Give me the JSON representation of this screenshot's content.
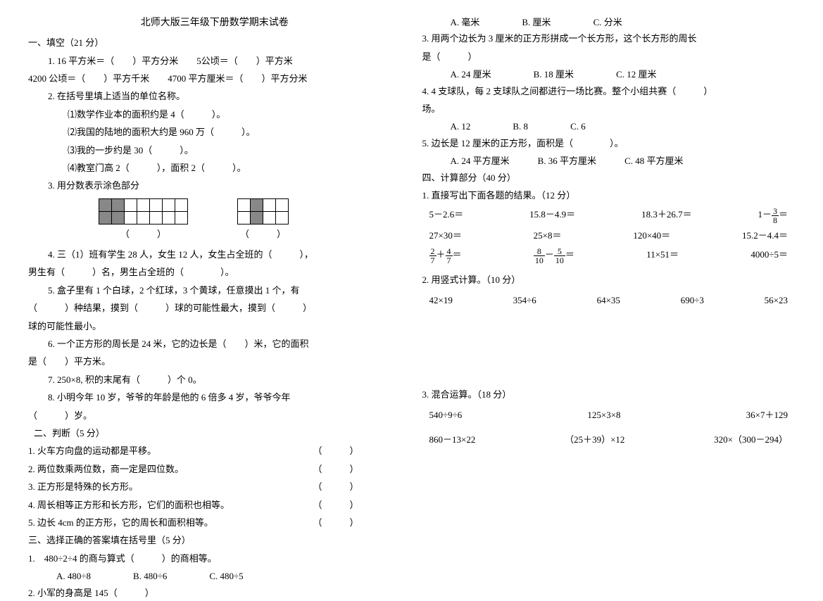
{
  "title": "北师大版三年级下册数学期末试卷",
  "sec1": {
    "heading": "一、填空（21 分）",
    "q1": "1. 16 平方米＝（　　）平方分米　　5公顷＝（　　）平方米",
    "q1b": "4200 公顷＝（　　）平方千米　　4700 平方厘米＝（　　）平方分米",
    "q2": "2. 在括号里填上适当的单位名称。",
    "q2a": "⑴数学作业本的面积约是 4（　　　）。",
    "q2b": "⑵我国的陆地的面积大约是 960 万（　　　）。",
    "q2c": "⑶我的一步约是 30（　　　）。",
    "q2d": "⑷教室门高 2（　　　），面积 2（　　　）。",
    "q3": "3. 用分数表示涂色部分",
    "paren": "（　　　）",
    "q4a": "4. 三（1）班有学生 28 人，女生 12 人，女生占全班的（　　　），",
    "q4b": "男生有（　　　）名，男生占全班的（　　　　）。",
    "q5a": "5. 盒子里有 1 个白球，2 个红球，3 个黄球，任意摸出 1 个，有",
    "q5b": "（　　　）种结果，摸到（　　　）球的可能性最大，摸到（　　　）",
    "q5c": "球的可能性最小。",
    "q6a": "6. 一个正方形的周长是 24 米，它的边长是（　　）米，它的面积",
    "q6b": "是（　　）平方米。",
    "q7": "7. 250×8, 积的末尾有（　　　）个 0。",
    "q8a": "8. 小明今年 10 岁，爷爷的年龄是他的 6 倍多 4 岁，爷爷今年",
    "q8b": "（　　　）岁。"
  },
  "sec2": {
    "heading": "二、判断（5 分）",
    "items": [
      "1. 火车方向盘的运动都是平移。",
      "2. 两位数乘两位数，商一定是四位数。",
      "3. 正方形是特殊的长方形。",
      "4. 周长相等正方形和长方形，它们的面积也相等。",
      "5. 边长 4cm 的正方形，它的周长和面积相等。"
    ],
    "mark": "（　　　）"
  },
  "sec3": {
    "heading": "三、选择正确的答案填在括号里（5 分）",
    "q1": "1.　480÷2÷4 的商与算式（　　　）的商相等。",
    "q1opts": [
      "A. 480÷8",
      "B. 480÷6",
      "C. 480÷5"
    ],
    "q2": "2. 小军的身高是 145（　　　）",
    "q2opts": [
      "A. 毫米",
      "B. 厘米",
      "C. 分米"
    ],
    "q3a": "3. 用两个边长为 3 厘米的正方形拼成一个长方形，这个长方形的周长",
    "q3b": "是（　　　）",
    "q3opts": [
      "A. 24 厘米",
      "B. 18 厘米",
      "C. 12 厘米"
    ],
    "q4a": "4. 4 支球队，每 2 支球队之间都进行一场比赛。整个小组共赛（　　　）",
    "q4b": "场。",
    "q4opts": [
      "A. 12",
      "B. 8",
      "C. 6"
    ],
    "q5": "5. 边长是 12 厘米的正方形，面积是（　　　　）。",
    "q5opts": [
      "A. 24 平方厘米",
      "B. 36 平方厘米",
      "C. 48 平方厘米"
    ]
  },
  "sec4": {
    "heading": "四、计算部分（40 分）",
    "p1": "1. 直接写出下面各题的结果。（12 分）",
    "row1": [
      "5－2.6＝",
      "15.8－4.9＝",
      "18.3＋26.7＝"
    ],
    "row1_last_pre": "1－",
    "row1_frac": {
      "n": "3",
      "d": "8"
    },
    "row1_last_post": "＝",
    "row2": [
      "27×30＝",
      "25×8＝",
      "120×40＝",
      "15.2－4.4＝"
    ],
    "row3_f1": {
      "a": {
        "n": "2",
        "d": "7"
      },
      "op": "＋",
      "b": {
        "n": "4",
        "d": "7"
      }
    },
    "row3_f2": {
      "a": {
        "n": "8",
        "d": "10"
      },
      "op": "－",
      "b": {
        "n": "5",
        "d": "10"
      }
    },
    "row3_rest": [
      "11×51＝",
      "4000÷5＝"
    ],
    "p2": "2. 用竖式计算。（10 分）",
    "vert": [
      "42×19",
      "354÷6",
      "64×35",
      "690÷3",
      "56×23"
    ],
    "p3": "3. 混合运算。（18 分）",
    "mix1": [
      "540÷9÷6",
      "125×3×8",
      "36×7＋129"
    ],
    "mix2": [
      "860－13×22",
      "（25＋39）×12",
      "320×（300－294）"
    ]
  },
  "grid1_fill": [
    [
      1,
      1,
      0,
      0,
      0,
      0,
      0
    ],
    [
      1,
      1,
      0,
      0,
      0,
      0,
      0
    ]
  ],
  "grid2_fill": [
    [
      0,
      1,
      0,
      0
    ],
    [
      0,
      1,
      0,
      0
    ]
  ]
}
